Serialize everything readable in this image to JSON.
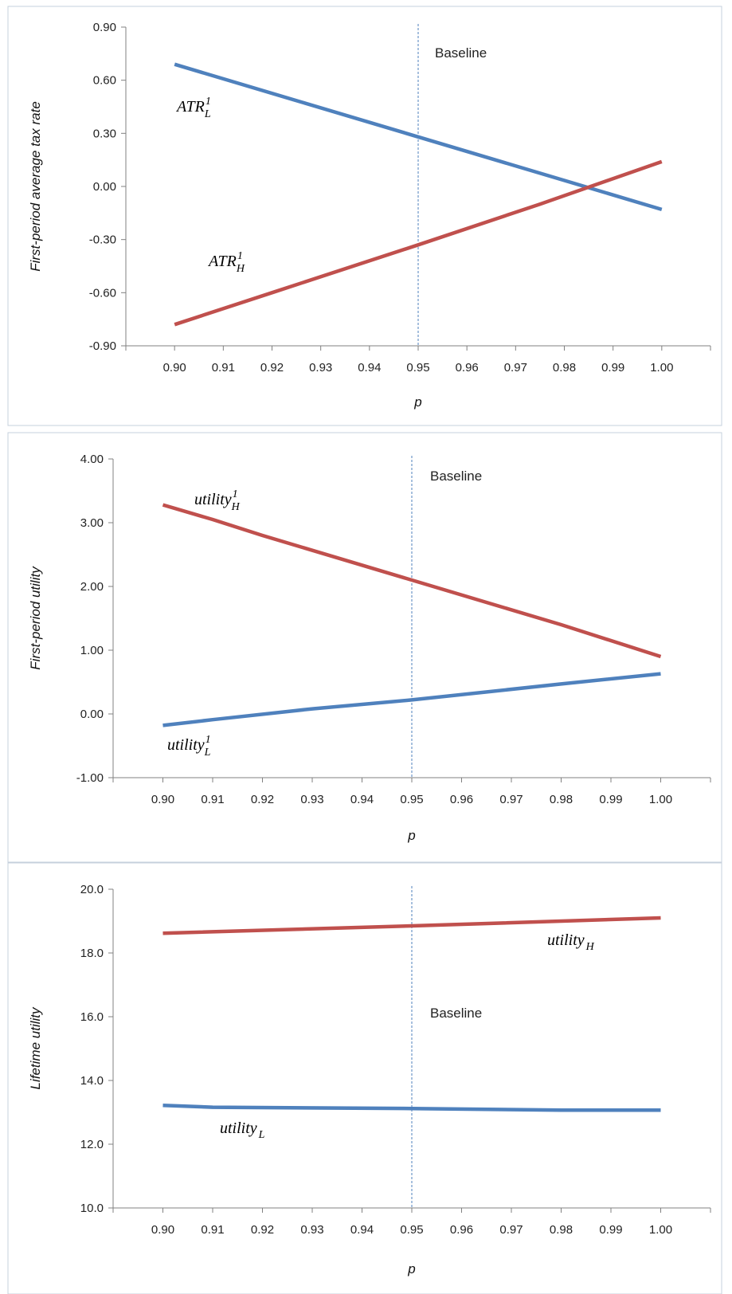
{
  "chart_data": [
    {
      "type": "line",
      "xlabel": "p",
      "ylabel": "First-period average tax rate",
      "ylim": [
        -0.9,
        0.9
      ],
      "yticks": [
        "-0.90",
        "-0.60",
        "-0.30",
        "0.00",
        "0.30",
        "0.60",
        "0.90"
      ],
      "xticks": [
        "0.90",
        "0.91",
        "0.92",
        "0.93",
        "0.94",
        "0.95",
        "0.96",
        "0.97",
        "0.98",
        "0.99",
        "1.00"
      ],
      "baseline": {
        "x": 0.95,
        "label": "Baseline"
      },
      "series": [
        {
          "base": "ATR",
          "sub": "L",
          "sup": "1",
          "color": "#4f81bd",
          "x": [
            0.9,
            0.95,
            1.0
          ],
          "y": [
            0.69,
            0.28,
            -0.13
          ]
        },
        {
          "base": "ATR",
          "sub": "H",
          "sup": "1",
          "color": "#c0504d",
          "x": [
            0.9,
            0.92,
            0.95,
            0.975,
            1.0
          ],
          "y": [
            -0.78,
            -0.6,
            -0.33,
            -0.1,
            0.14
          ]
        }
      ]
    },
    {
      "type": "line",
      "xlabel": "p",
      "ylabel": "First-period utility",
      "ylim": [
        -1.0,
        4.0
      ],
      "yticks": [
        "-1.00",
        "0.00",
        "1.00",
        "2.00",
        "3.00",
        "4.00"
      ],
      "xticks": [
        "0.90",
        "0.91",
        "0.92",
        "0.93",
        "0.94",
        "0.95",
        "0.96",
        "0.97",
        "0.98",
        "0.99",
        "1.00"
      ],
      "baseline": {
        "x": 0.95,
        "label": "Baseline"
      },
      "series": [
        {
          "base": "utility",
          "sub": "H",
          "sup": "1",
          "color": "#c0504d",
          "x": [
            0.9,
            0.91,
            0.92,
            0.95,
            0.98,
            1.0
          ],
          "y": [
            3.28,
            3.05,
            2.8,
            2.1,
            1.4,
            0.9
          ]
        },
        {
          "base": "utility",
          "sub": "L",
          "sup": "1",
          "color": "#4f81bd",
          "x": [
            0.9,
            0.91,
            0.93,
            0.95,
            0.98,
            1.0
          ],
          "y": [
            -0.18,
            -0.09,
            0.08,
            0.22,
            0.47,
            0.63
          ]
        }
      ]
    },
    {
      "type": "line",
      "xlabel": "p",
      "ylabel": "Lifetime utility",
      "ylim": [
        10.0,
        20.0
      ],
      "yticks": [
        "10.0",
        "12.0",
        "14.0",
        "16.0",
        "18.0",
        "20.0"
      ],
      "xticks": [
        "0.90",
        "0.91",
        "0.92",
        "0.93",
        "0.94",
        "0.95",
        "0.96",
        "0.97",
        "0.98",
        "0.99",
        "1.00"
      ],
      "baseline": {
        "x": 0.95,
        "label": "Baseline"
      },
      "series": [
        {
          "base": "utility",
          "sub": "H",
          "sup": "",
          "color": "#c0504d",
          "x": [
            0.9,
            0.95,
            1.0
          ],
          "y": [
            18.62,
            18.85,
            19.1
          ]
        },
        {
          "base": "utility",
          "sub": "L",
          "sup": "",
          "color": "#4f81bd",
          "x": [
            0.9,
            0.91,
            0.95,
            0.98,
            1.0
          ],
          "y": [
            13.22,
            13.16,
            13.12,
            13.07,
            13.07
          ]
        }
      ]
    }
  ]
}
